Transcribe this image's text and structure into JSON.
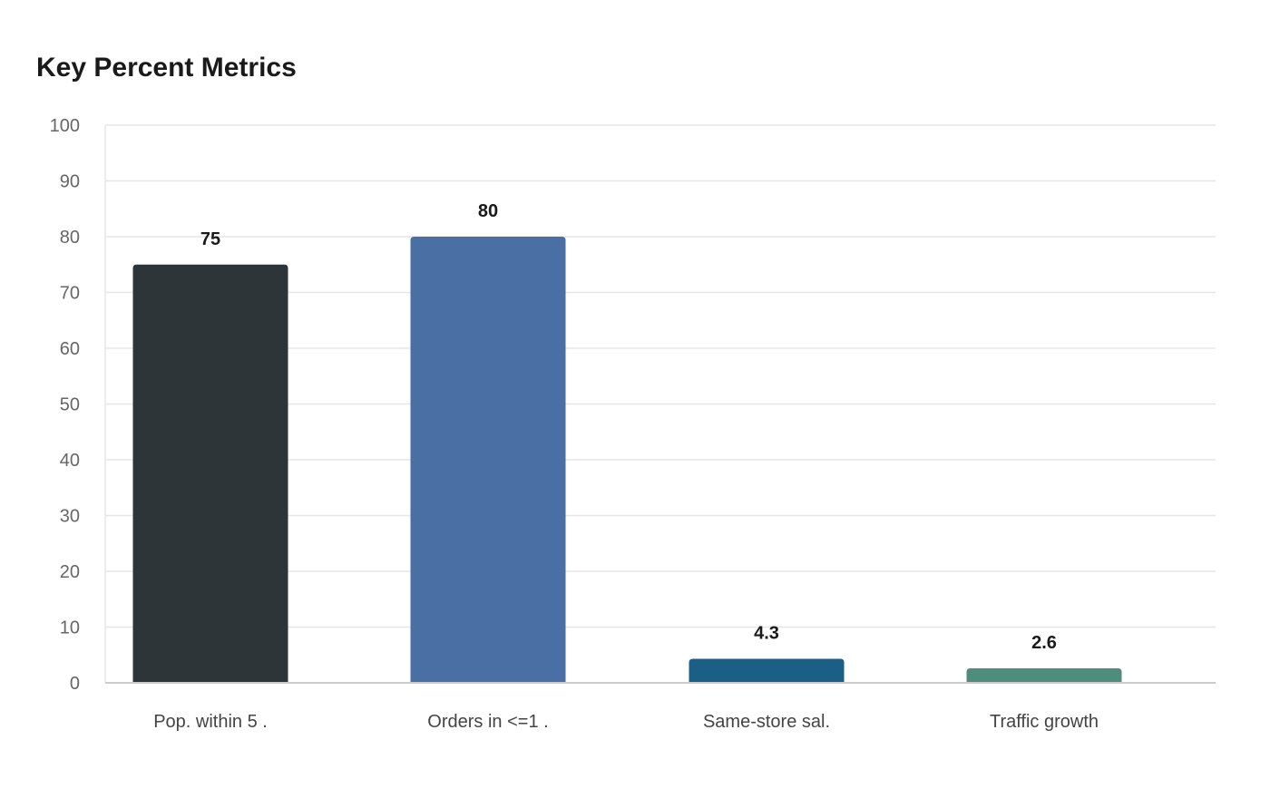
{
  "chart_data": {
    "type": "bar",
    "title": "Key Percent Metrics",
    "xlabel": "",
    "ylabel": "",
    "categories": [
      "Pop. within 5 .",
      "Orders in <=1 .",
      "Same-store sal.",
      "Traffic growth"
    ],
    "values": [
      75,
      80,
      4.3,
      2.6
    ],
    "value_labels": [
      "75",
      "80",
      "4.3",
      "2.6"
    ],
    "colors": [
      "#2e3538",
      "#4a6fa5",
      "#1b5f87",
      "#4e8c7c"
    ],
    "ylim": [
      0,
      100
    ],
    "yticks": [
      0,
      10,
      20,
      30,
      40,
      50,
      60,
      70,
      80,
      90,
      100
    ],
    "grid": true,
    "legend": "none"
  }
}
